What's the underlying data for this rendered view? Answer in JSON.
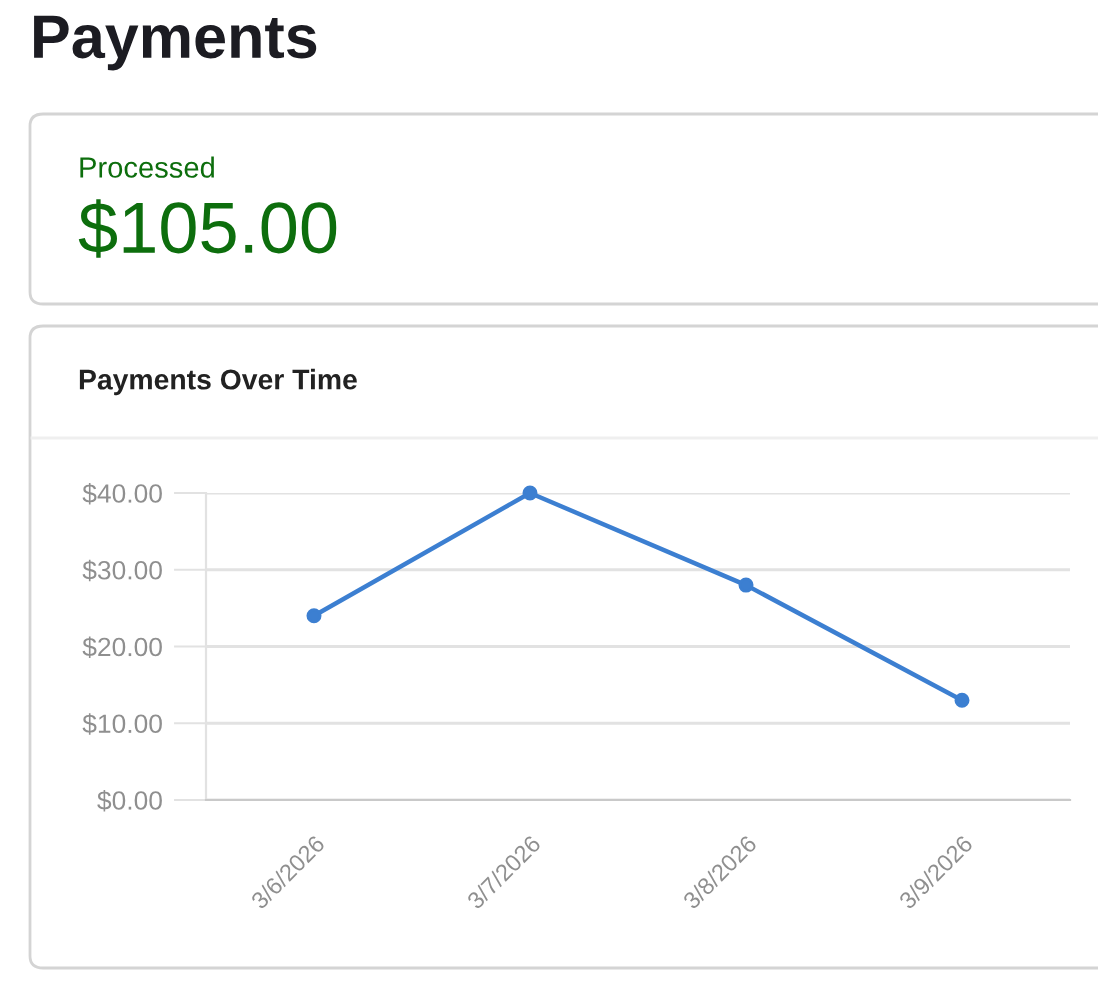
{
  "chart_data": [
    {
      "type": "other",
      "title": "Payments",
      "annotations": [
        "Processed",
        "$105.00"
      ]
    },
    {
      "type": "line",
      "title": "Payments Over Time",
      "categories": [
        "3/6/2026",
        "3/7/2026",
        "3/8/2026",
        "3/9/2026"
      ],
      "values": [
        24,
        40,
        28,
        13
      ],
      "color": "#3c7fd1",
      "ylim": [
        0,
        40
      ],
      "yticks": [
        {
          "value": 0,
          "label": "$0.00"
        },
        {
          "value": 10,
          "label": "$10.00"
        },
        {
          "value": 20,
          "label": "$20.00"
        },
        {
          "value": 30,
          "label": "$30.00"
        },
        {
          "value": 40,
          "label": "$40.00"
        }
      ],
      "grid": "y",
      "marker": "circle"
    }
  ]
}
